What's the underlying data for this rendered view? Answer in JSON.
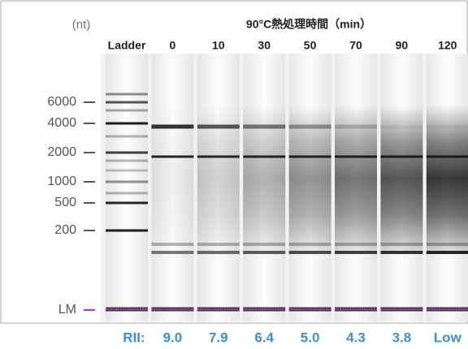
{
  "unit": "(nt)",
  "title": "90°C熱処理時間（min）",
  "lanes": [
    "Ladder",
    "0",
    "10",
    "30",
    "50",
    "70",
    "90",
    "120"
  ],
  "ladder_markers": [
    "6000",
    "4000",
    "2000",
    "1000",
    "500",
    "200",
    "LM"
  ],
  "rii_label": "RII:",
  "rii_values": [
    "9.0",
    "7.9",
    "6.4",
    "5.0",
    "4.3",
    "3.8",
    "Low"
  ]
}
